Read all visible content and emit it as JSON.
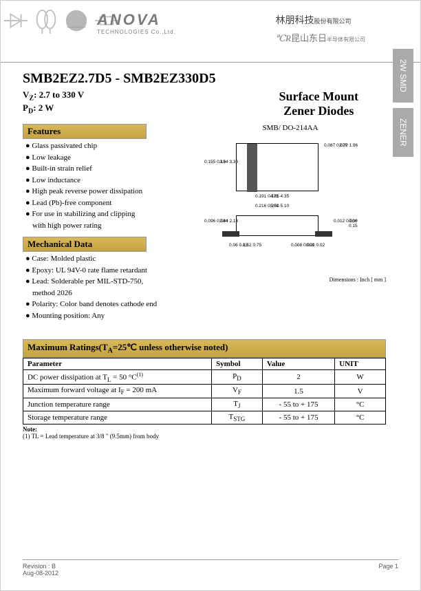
{
  "header": {
    "logo_name": "ANOVA",
    "logo_sub": "TECHNOLOGIES Co.,Ltd.",
    "cn_line1_main": "林朋科技",
    "cn_line1_sub": "股份有限公司",
    "cn_line2_main": "昆山东日",
    "cn_line2_sub": "半导体有限公司"
  },
  "side_tabs": {
    "tab1": "2W SMD",
    "tab2": "ZENER"
  },
  "title": "SMB2EZ2.7D5 - SMB2EZ330D5",
  "specs": {
    "vz_label": "V",
    "vz_sub": "Z",
    "vz_value": ": 2.7 to 330 V",
    "pd_label": "P",
    "pd_sub": "D",
    "pd_value": ": 2 W"
  },
  "product_type_line1": "Surface Mount",
  "product_type_line2": "Zener Diodes",
  "package_label": "SMB/ DO-214AA",
  "features_header": "Features",
  "features": [
    "Glass passivated chip",
    "Low leakage",
    "Built-in strain relief",
    "Low inductance",
    "High peak reverse power dissipation",
    "Lead (Pb)-free component",
    "For use in stabilizing and clipping",
    "with high power rating"
  ],
  "mechanical_header": "Mechanical Data",
  "mechanical": [
    "Case: Molded plastic",
    "Epoxy: UL 94V-0 rate flame retardant",
    "Lead: Solderable per MIL-STD-750,",
    "method 2026",
    "Polarity: Color band denotes cathode end",
    "Mounting position: Any"
  ],
  "dimensions": {
    "caption": "Dimensions : Inch [ mm ]",
    "d1": "0.155\n0.13",
    "d1m": "3.94\n3.30",
    "d2": "0.087\n0.077",
    "d2m": "2.20\n1.96",
    "d3": "0.191\n0.171",
    "d3m": "4.85\n4.35",
    "d4": "0.216\n0.201",
    "d4m": "5.50\n5.10",
    "d5": "0.096\n0.084",
    "d5m": "2.44\n2.13",
    "d6": "0.06\n0.03",
    "d6m": "1.52\n0.75",
    "d7": "0.012\n0.006",
    "d7m": "0.30\n0.15",
    "d8": "0.008\n0.001",
    "d8m": "0.20\n0.02"
  },
  "ratings_header": "Maximum Ratings(T",
  "ratings_header_sub": "A",
  "ratings_header_tail": "=25℃ unless otherwise noted)",
  "ratings_columns": [
    "Parameter",
    "Symbol",
    "Value",
    "UNIT"
  ],
  "ratings_rows": [
    {
      "param": "DC power dissipation at T",
      "param_sub": "L",
      "param_tail": " = 50 °C",
      "param_sup": "(1)",
      "symbol": "P",
      "symbol_sub": "D",
      "value": "2",
      "unit": "W"
    },
    {
      "param": "Maximum forward voltage at I",
      "param_sub": "F",
      "param_tail": " = 200 mA",
      "param_sup": "",
      "symbol": "V",
      "symbol_sub": "F",
      "value": "1.5",
      "unit": "V"
    },
    {
      "param": "Junction temperature range",
      "param_sub": "",
      "param_tail": "",
      "param_sup": "",
      "symbol": "T",
      "symbol_sub": "J",
      "value": "- 55 to + 175",
      "unit": "°C"
    },
    {
      "param": "Storage temperature range",
      "param_sub": "",
      "param_tail": "",
      "param_sup": "",
      "symbol": "T",
      "symbol_sub": "STG",
      "value": "- 55 to + 175",
      "unit": "°C"
    }
  ],
  "note_label": "Note:",
  "note_text": "(1) TL = Lead temperature at 3/8 \" (9.5mm) from body",
  "footer": {
    "revision": "Revision : B",
    "date": "Aug-08-2012",
    "page": "Page 1"
  },
  "colors": {
    "gold_top": "#d8b85a",
    "gold_bottom": "#c5a340",
    "grey_tab": "#aaaaaa"
  }
}
